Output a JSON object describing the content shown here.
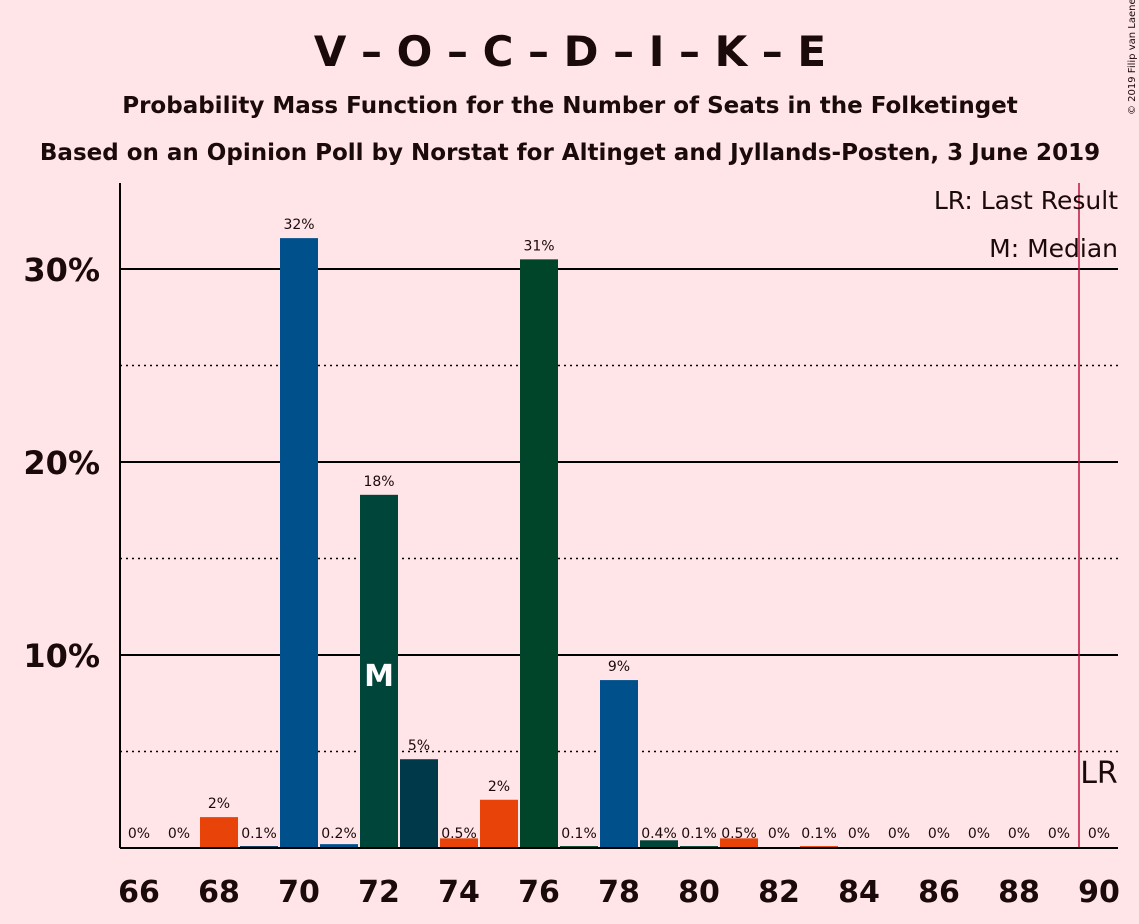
{
  "chart_data": {
    "type": "bar",
    "title": "V – O – C – D – I – K – E",
    "subtitle": "Probability Mass Function for the Number of Seats in the Folketinget",
    "subtitle2": "Based on an Opinion Poll by Norstat for Altinget and Jyllands-Posten, 3 June 2019",
    "copyright": "© 2019 Filip van Laenen",
    "legend": {
      "lr": "LR: Last Result",
      "median": "M: Median",
      "position": "top-right"
    },
    "ylim": [
      0,
      34
    ],
    "yticks": [
      {
        "value": 10,
        "label": "10%"
      },
      {
        "value": 20,
        "label": "20%"
      },
      {
        "value": 30,
        "label": "30%"
      }
    ],
    "dotted_lines": [
      5,
      15,
      25
    ],
    "xlim": [
      66,
      90
    ],
    "xticks": [
      66,
      68,
      70,
      72,
      74,
      76,
      78,
      80,
      82,
      84,
      86,
      88,
      90
    ],
    "last_result": {
      "x": 89.5,
      "label": "LR",
      "color": "#C0143C"
    },
    "median": {
      "x": 72,
      "label": "M"
    },
    "bars": [
      {
        "x": 66,
        "value": 0,
        "label": "0%",
        "color": "#E8440A"
      },
      {
        "x": 67,
        "value": 0,
        "label": "0%",
        "color": "#E8440A"
      },
      {
        "x": 68,
        "value": 1.6,
        "label": "2%",
        "color": "#E8440A"
      },
      {
        "x": 69,
        "value": 0.1,
        "label": "0.1%",
        "color": "#00395A"
      },
      {
        "x": 70,
        "value": 31.6,
        "label": "32%",
        "color": "#00508C"
      },
      {
        "x": 71,
        "value": 0.2,
        "label": "0.2%",
        "color": "#00508C"
      },
      {
        "x": 72,
        "value": 18.3,
        "label": "18%",
        "color": "#00453A"
      },
      {
        "x": 73,
        "value": 4.6,
        "label": "5%",
        "color": "#00394A"
      },
      {
        "x": 74,
        "value": 0.5,
        "label": "0.5%",
        "color": "#E8440A"
      },
      {
        "x": 75,
        "value": 2.5,
        "label": "2%",
        "color": "#E8440A"
      },
      {
        "x": 76,
        "value": 30.5,
        "label": "31%",
        "color": "#00452A"
      },
      {
        "x": 77,
        "value": 0.1,
        "label": "0.1%",
        "color": "#00452A"
      },
      {
        "x": 78,
        "value": 8.7,
        "label": "9%",
        "color": "#00508C"
      },
      {
        "x": 79,
        "value": 0.4,
        "label": "0.4%",
        "color": "#00453A"
      },
      {
        "x": 80,
        "value": 0.1,
        "label": "0.1%",
        "color": "#00453A"
      },
      {
        "x": 81,
        "value": 0.5,
        "label": "0.5%",
        "color": "#E8440A"
      },
      {
        "x": 82,
        "value": 0,
        "label": "0%",
        "color": "#E8440A"
      },
      {
        "x": 83,
        "value": 0.1,
        "label": "0.1%",
        "color": "#E8440A"
      },
      {
        "x": 84,
        "value": 0,
        "label": "0%",
        "color": "#E8440A"
      },
      {
        "x": 85,
        "value": 0,
        "label": "0%",
        "color": "#E8440A"
      },
      {
        "x": 86,
        "value": 0,
        "label": "0%",
        "color": "#E8440A"
      },
      {
        "x": 87,
        "value": 0,
        "label": "0%",
        "color": "#E8440A"
      },
      {
        "x": 88,
        "value": 0,
        "label": "0%",
        "color": "#E8440A"
      },
      {
        "x": 89,
        "value": 0,
        "label": "0%",
        "color": "#E8440A"
      },
      {
        "x": 90,
        "value": 0,
        "label": "0%",
        "color": "#E8440A"
      }
    ]
  }
}
